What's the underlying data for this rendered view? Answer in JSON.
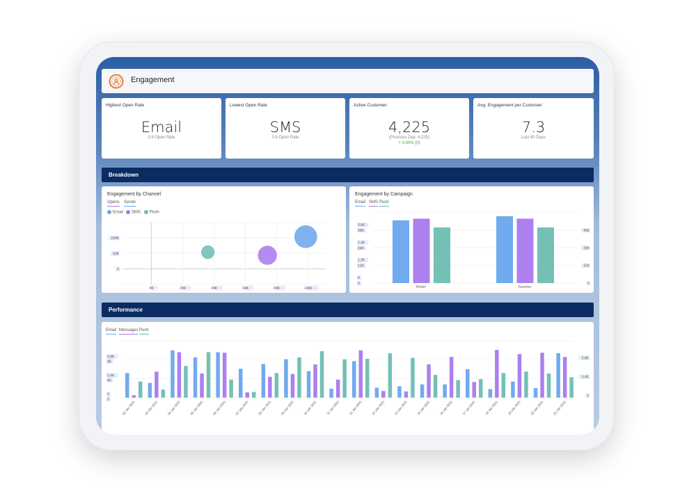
{
  "header": {
    "title": "Engagement",
    "icon": "engagement-user-icon",
    "icon_color": "#e8731a"
  },
  "kpis": [
    {
      "label": "Highest Open Rate",
      "value": "Email",
      "sub": "0.8 Open Rate"
    },
    {
      "label": "Lowest Open Rate",
      "value": "SMS",
      "sub": "0.8 Open Rate"
    },
    {
      "label": "Active Customer",
      "value": "4,225",
      "sub": "(Previous Day: 4,225)",
      "change": "+ 0.00% (0)"
    },
    {
      "label": "Avg. Engagement per Customer",
      "value": "7.3",
      "sub": "Last 90 Days"
    }
  ],
  "sections": {
    "breakdown": "Breakdown",
    "performance": "Performance"
  },
  "colors": {
    "email": "#6aa5ee",
    "sms": "#a879ee",
    "push": "#6dbdb2",
    "band": "#0b2b63"
  },
  "chart_data": [
    {
      "type": "scatter",
      "title": "Engagement by Channel",
      "tabs": [
        "Opens",
        "Sends"
      ],
      "legend": [
        "Email",
        "SMS",
        "Push"
      ],
      "x_ticks": [
        "0K",
        "20K",
        "40K",
        "60K",
        "80K",
        "100K"
      ],
      "y_ticks": [
        "0",
        "50K",
        "100K"
      ],
      "points": [
        {
          "name": "Email",
          "x": 98500,
          "y": 104000,
          "size": 50
        },
        {
          "name": "SMS",
          "x": 74000,
          "y": 44000,
          "size": 42
        },
        {
          "name": "Push",
          "x": 36000,
          "y": 54000,
          "size": 30
        }
      ],
      "grid": true
    },
    {
      "type": "bar",
      "title": "Engagement by Campaign",
      "legend": [
        "Email",
        "SMS",
        "Push"
      ],
      "categories": [
        "Winter",
        "Summer"
      ],
      "y_ticks_email": [
        "0",
        "1.2K",
        "2.4K",
        "3.6K"
      ],
      "y_ticks_sms": [
        "0",
        "12K",
        "24K",
        "36K"
      ],
      "y_ticks_push": [
        "0",
        "15K",
        "30K",
        "45K"
      ],
      "series": [
        {
          "name": "Email",
          "values": [
            4280,
            4560
          ]
        },
        {
          "name": "SMS",
          "values": [
            43900,
            43900
          ]
        },
        {
          "name": "Push",
          "values": [
            47400,
            47400
          ]
        }
      ],
      "grid": true
    },
    {
      "type": "bar",
      "legend": [
        "Email",
        "Messages",
        "Push"
      ],
      "categories": [
        "02 Jan 2021",
        "03 Jan 2021",
        "04 Jan 2021",
        "05 Jan 2021",
        "06 Jan 2021",
        "07 Jan 2021",
        "08 Jan 2021",
        "09 Jan 2021",
        "10 Jan 2021",
        "11 Jan 2021",
        "12 Jan 2021",
        "13 Jan 2021",
        "14 Jan 2021",
        "15 Jan 2021",
        "16 Jan 2021",
        "17 Jan 2021",
        "18 Jan 2021",
        "19 Jan 2021",
        "20 Jan 2021",
        "21 Jan 2021"
      ],
      "y_ticks_email": [
        "0",
        "0.4K",
        "0.8K"
      ],
      "y_ticks_messages": [
        "0",
        "40",
        "80"
      ],
      "y_ticks_push": [
        "0",
        "0.4K",
        "0.8K"
      ],
      "series": [
        {
          "name": "Email",
          "values": [
            520,
            310,
            1000,
            850,
            960,
            610,
            710,
            810,
            560,
            190,
            770,
            210,
            240,
            280,
            280,
            600,
            180,
            340,
            200,
            940
          ]
        },
        {
          "name": "Messages",
          "values": [
            5,
            55,
            96,
            51,
            95,
            11,
            44,
            50,
            70,
            38,
            100,
            14,
            13,
            70,
            86,
            33,
            101,
            92,
            95,
            86
          ]
        },
        {
          "name": "Push",
          "values": [
            340,
            170,
            670,
            960,
            380,
            120,
            520,
            850,
            980,
            810,
            820,
            940,
            840,
            480,
            370,
            390,
            520,
            550,
            510,
            430
          ]
        }
      ],
      "grid": true
    }
  ]
}
